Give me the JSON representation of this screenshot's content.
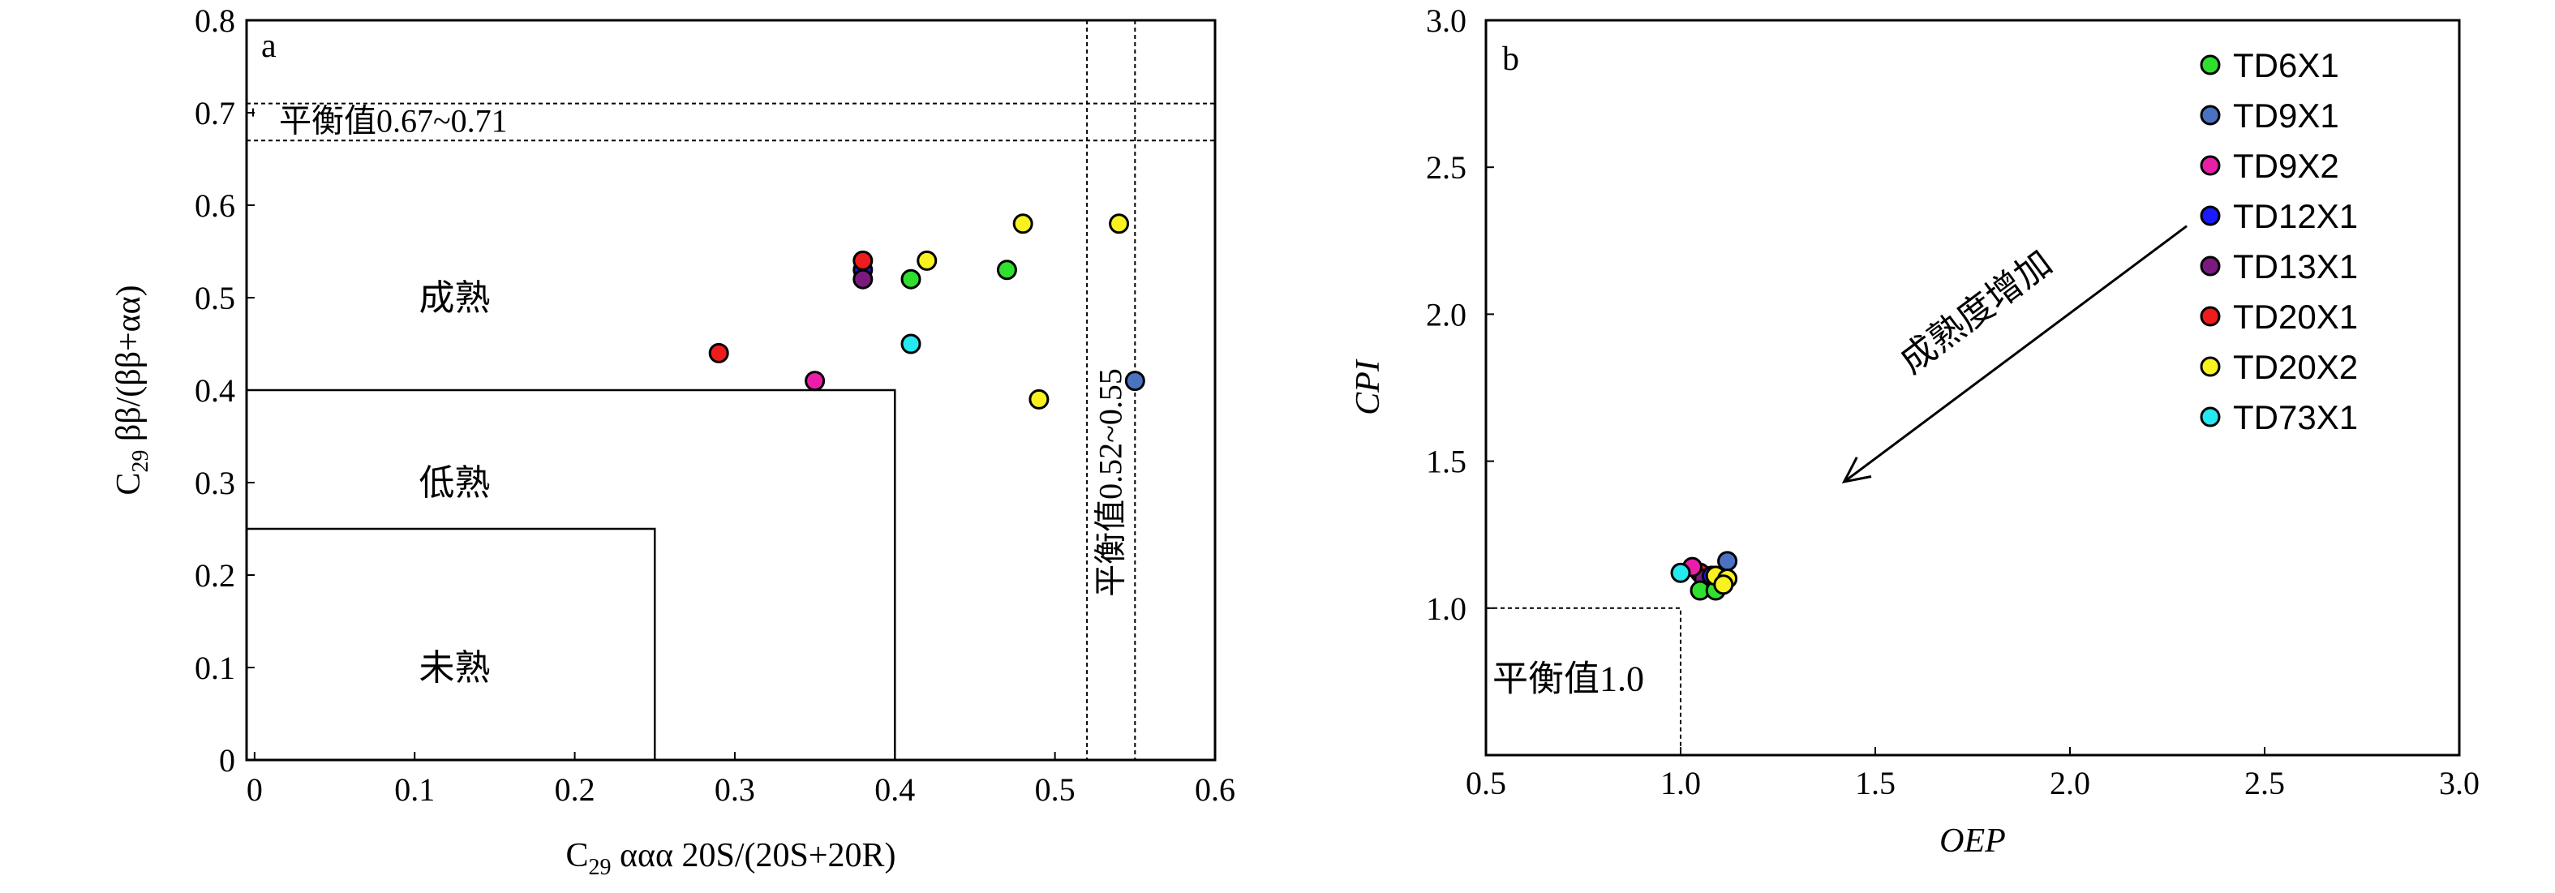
{
  "chart_data": [
    {
      "panel": "a",
      "type": "scatter",
      "xlim": [
        -0.005,
        0.6
      ],
      "ylim": [
        0,
        0.8
      ],
      "x_ticks": [
        "0",
        "0.1",
        "0.2",
        "0.3",
        "0.4",
        "0.5",
        "0.6"
      ],
      "y_ticks": [
        "0",
        "0.1",
        "0.2",
        "0.3",
        "0.4",
        "0.5",
        "0.6",
        "0.7",
        "0.8"
      ],
      "xlabel": {
        "pre": "C",
        "sub": "29",
        "post": " ααα 20S/(20S+20R)"
      },
      "ylabel": {
        "pre": "C",
        "sub": "29",
        "post": " ββ/(ββ+αα)"
      },
      "regions": [
        {
          "label": "成熟"
        },
        {
          "label": "低熟",
          "x_max": 0.4,
          "y_max": 0.4
        },
        {
          "label": "未熟",
          "x_max": 0.25,
          "y_max": 0.25
        }
      ],
      "equilibrium_bands": [
        {
          "label": "平衡值0.67~0.71",
          "axis": "y",
          "range": [
            0.67,
            0.71
          ]
        },
        {
          "label": "平衡值0.52~0.55",
          "axis": "x",
          "range": [
            0.52,
            0.55
          ]
        }
      ],
      "points": [
        {
          "well": "TD20X1",
          "color": "#ee1c1c",
          "x": 0.29,
          "y": 0.44
        },
        {
          "well": "TD9X2",
          "color": "#ea1fa8",
          "x": 0.35,
          "y": 0.41
        },
        {
          "well": "TD12X1",
          "color": "#1a1aff",
          "x": 0.38,
          "y": 0.53
        },
        {
          "well": "TD20X1",
          "color": "#ee1c1c",
          "x": 0.38,
          "y": 0.54
        },
        {
          "well": "TD13X1",
          "color": "#7b1a7e",
          "x": 0.38,
          "y": 0.52
        },
        {
          "well": "TD6X1",
          "color": "#2fe02f",
          "x": 0.41,
          "y": 0.52
        },
        {
          "well": "TD73X1",
          "color": "#25e8f0",
          "x": 0.41,
          "y": 0.45
        },
        {
          "well": "TD20X2",
          "color": "#f8f21e",
          "x": 0.42,
          "y": 0.54
        },
        {
          "well": "TD6X1",
          "color": "#2fe02f",
          "x": 0.47,
          "y": 0.53
        },
        {
          "well": "TD20X2",
          "color": "#f8f21e",
          "x": 0.48,
          "y": 0.58
        },
        {
          "well": "TD20X2",
          "color": "#f8f21e",
          "x": 0.49,
          "y": 0.39
        },
        {
          "well": "TD20X2",
          "color": "#f8f21e",
          "x": 0.54,
          "y": 0.58
        },
        {
          "well": "TD9X1",
          "color": "#4a72c0",
          "x": 0.55,
          "y": 0.41
        }
      ]
    },
    {
      "panel": "b",
      "type": "scatter",
      "xlim": [
        0.5,
        3.0
      ],
      "ylim": [
        0.5,
        3.0
      ],
      "x_ticks": [
        "0.5",
        "1.0",
        "1.5",
        "2.0",
        "2.5",
        "3.0"
      ],
      "y_ticks": [
        "1.0",
        "1.5",
        "2.0",
        "2.5",
        "3.0"
      ],
      "xlabel": "OEP",
      "ylabel": "CPI",
      "equilibrium_label": "平衡值1.0",
      "equilibrium_value": 1.0,
      "arrow_label": "成熟度增加",
      "legend_position": "top-right",
      "legend": [
        {
          "name": "TD6X1",
          "color": "#2fe02f"
        },
        {
          "name": "TD9X1",
          "color": "#4a72c0"
        },
        {
          "name": "TD9X2",
          "color": "#ea1fa8"
        },
        {
          "name": "TD12X1",
          "color": "#1a1aff"
        },
        {
          "name": "TD13X1",
          "color": "#7b1a7e"
        },
        {
          "name": "TD20X1",
          "color": "#ee1c1c"
        },
        {
          "name": "TD20X2",
          "color": "#f8f21e"
        },
        {
          "name": "TD73X1",
          "color": "#25e8f0"
        }
      ],
      "points": [
        {
          "well": "TD20X1",
          "color": "#ee1c1c",
          "x": 1.05,
          "y": 1.12
        },
        {
          "well": "TD13X1",
          "color": "#7b1a7e",
          "x": 1.06,
          "y": 1.1
        },
        {
          "well": "TD12X1",
          "color": "#1a1aff",
          "x": 1.08,
          "y": 1.11
        },
        {
          "well": "TD9X1",
          "color": "#4a72c0",
          "x": 1.12,
          "y": 1.16
        },
        {
          "well": "TD9X2",
          "color": "#ea1fa8",
          "x": 1.03,
          "y": 1.14
        },
        {
          "well": "TD6X1",
          "color": "#2fe02f",
          "x": 1.05,
          "y": 1.06
        },
        {
          "well": "TD6X1",
          "color": "#2fe02f",
          "x": 1.09,
          "y": 1.06
        },
        {
          "well": "TD20X2",
          "color": "#f8f21e",
          "x": 1.09,
          "y": 1.11
        },
        {
          "well": "TD20X2",
          "color": "#f8f21e",
          "x": 1.12,
          "y": 1.1
        },
        {
          "well": "TD20X2",
          "color": "#f8f21e",
          "x": 1.11,
          "y": 1.08
        },
        {
          "well": "TD73X1",
          "color": "#25e8f0",
          "x": 1.0,
          "y": 1.12
        }
      ]
    }
  ]
}
